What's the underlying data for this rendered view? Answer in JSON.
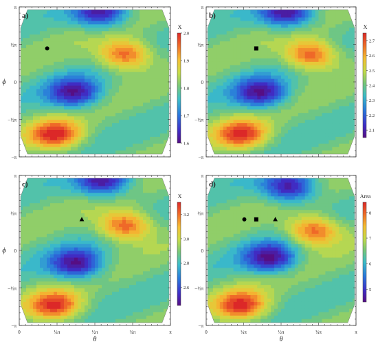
{
  "chart_data": [
    {
      "type": "heatmap",
      "panel_label": "a)",
      "xlabel": "",
      "ylabel": "ϕ",
      "xlim": [
        0,
        3.1416
      ],
      "ylim": [
        -3.1416,
        3.1416
      ],
      "x_ticks": [],
      "y_ticks": [
        "π",
        "½π",
        "0",
        "−½π",
        "−π"
      ],
      "x_tick_values": [],
      "y_tick_values": [
        3.1416,
        1.5708,
        0,
        -1.5708,
        -3.1416
      ],
      "colorbar_title": "X",
      "colorbar_ticks": [
        "2.0",
        "1.9",
        "1.8",
        "1.7",
        "1.6"
      ],
      "colorbar_tick_values": [
        2.0,
        1.9,
        1.8,
        1.7,
        1.6
      ],
      "value_range": [
        1.6,
        2.0
      ],
      "markers": [
        {
          "shape": "circle",
          "theta": 0.58,
          "phi": 1.4
        }
      ],
      "extrema": [
        {
          "theta": 1.7,
          "phi": 2.9,
          "value": 1.62
        },
        {
          "theta": 2.2,
          "phi": 1.15,
          "value": 1.98
        },
        {
          "theta": 1.15,
          "phi": -0.45,
          "value": 1.62
        },
        {
          "theta": 0.75,
          "phi": -2.2,
          "value": 1.99
        }
      ]
    },
    {
      "type": "heatmap",
      "panel_label": "b)",
      "xlabel": "",
      "ylabel": "",
      "xlim": [
        0,
        3.1416
      ],
      "ylim": [
        -3.1416,
        3.1416
      ],
      "x_ticks": [],
      "y_ticks": [
        "π",
        "½π",
        "0",
        "−½π",
        "−π"
      ],
      "x_tick_values": [],
      "y_tick_values": [
        3.1416,
        1.5708,
        0,
        -1.5708,
        -3.1416
      ],
      "colorbar_title": "X",
      "colorbar_ticks": [
        "2.7",
        "2.6",
        "2.5",
        "2.4",
        "2.3",
        "2.2",
        "2.1"
      ],
      "colorbar_tick_values": [
        2.7,
        2.6,
        2.5,
        2.4,
        2.3,
        2.2,
        2.1
      ],
      "value_range": [
        2.05,
        2.75
      ],
      "markers": [
        {
          "shape": "square",
          "theta": 1.05,
          "phi": 1.4
        }
      ],
      "extrema": [
        {
          "theta": 1.7,
          "phi": 2.9,
          "value": 2.07
        },
        {
          "theta": 2.2,
          "phi": 1.15,
          "value": 2.72
        },
        {
          "theta": 1.15,
          "phi": -0.45,
          "value": 2.08
        },
        {
          "theta": 0.75,
          "phi": -2.2,
          "value": 2.72
        }
      ]
    },
    {
      "type": "heatmap",
      "panel_label": "c)",
      "xlabel": "θ",
      "ylabel": "ϕ",
      "xlim": [
        0,
        3.1416
      ],
      "ylim": [
        -3.1416,
        3.1416
      ],
      "x_ticks": [
        "0",
        "¼π",
        "½π",
        "¾π",
        "π"
      ],
      "y_ticks": [
        "π",
        "½π",
        "0",
        "−½π",
        "−π"
      ],
      "x_tick_values": [
        0,
        0.7854,
        1.5708,
        2.3562,
        3.1416
      ],
      "y_tick_values": [
        3.1416,
        1.5708,
        0,
        -1.5708,
        -3.1416
      ],
      "colorbar_title": "X",
      "colorbar_ticks": [
        "3.2",
        "3.0",
        "2.8",
        "2.6"
      ],
      "colorbar_tick_values": [
        3.2,
        3.0,
        2.8,
        2.6
      ],
      "value_range": [
        2.45,
        3.3
      ],
      "markers": [
        {
          "shape": "triangle",
          "theta": 1.3,
          "phi": 1.3
        }
      ],
      "extrema": [
        {
          "theta": 1.75,
          "phi": 2.9,
          "value": 2.48
        },
        {
          "theta": 2.2,
          "phi": 1.05,
          "value": 3.27
        },
        {
          "theta": 1.2,
          "phi": -0.55,
          "value": 2.47
        },
        {
          "theta": 0.75,
          "phi": -2.3,
          "value": 3.27
        }
      ]
    },
    {
      "type": "heatmap",
      "panel_label": "d)",
      "xlabel": "θ",
      "ylabel": "",
      "xlim": [
        0,
        3.1416
      ],
      "ylim": [
        -3.1416,
        3.1416
      ],
      "x_ticks": [
        "0",
        "¼π",
        "½π",
        "¾π",
        "π"
      ],
      "y_ticks": [
        "π",
        "½π",
        "0",
        "−½π",
        "−π"
      ],
      "x_tick_values": [
        0,
        0.7854,
        1.5708,
        2.3562,
        3.1416
      ],
      "y_tick_values": [
        3.1416,
        1.5708,
        0,
        -1.5708,
        -3.1416
      ],
      "colorbar_title": "Area",
      "colorbar_ticks": [
        "8",
        "7",
        "6",
        "5"
      ],
      "colorbar_tick_values": [
        8,
        7,
        6,
        5
      ],
      "value_range": [
        4.5,
        8.4
      ],
      "markers": [
        {
          "shape": "circle",
          "theta": 0.8,
          "phi": 1.3
        },
        {
          "shape": "square",
          "theta": 1.05,
          "phi": 1.3
        },
        {
          "shape": "triangle",
          "theta": 1.45,
          "phi": 1.3
        }
      ],
      "extrema": [
        {
          "theta": 1.75,
          "phi": 2.65,
          "value": 4.6
        },
        {
          "theta": 2.25,
          "phi": 0.85,
          "value": 8.2
        },
        {
          "theta": 1.35,
          "phi": -0.3,
          "value": 4.6
        },
        {
          "theta": 0.75,
          "phi": -2.3,
          "value": 8.3
        }
      ]
    }
  ]
}
